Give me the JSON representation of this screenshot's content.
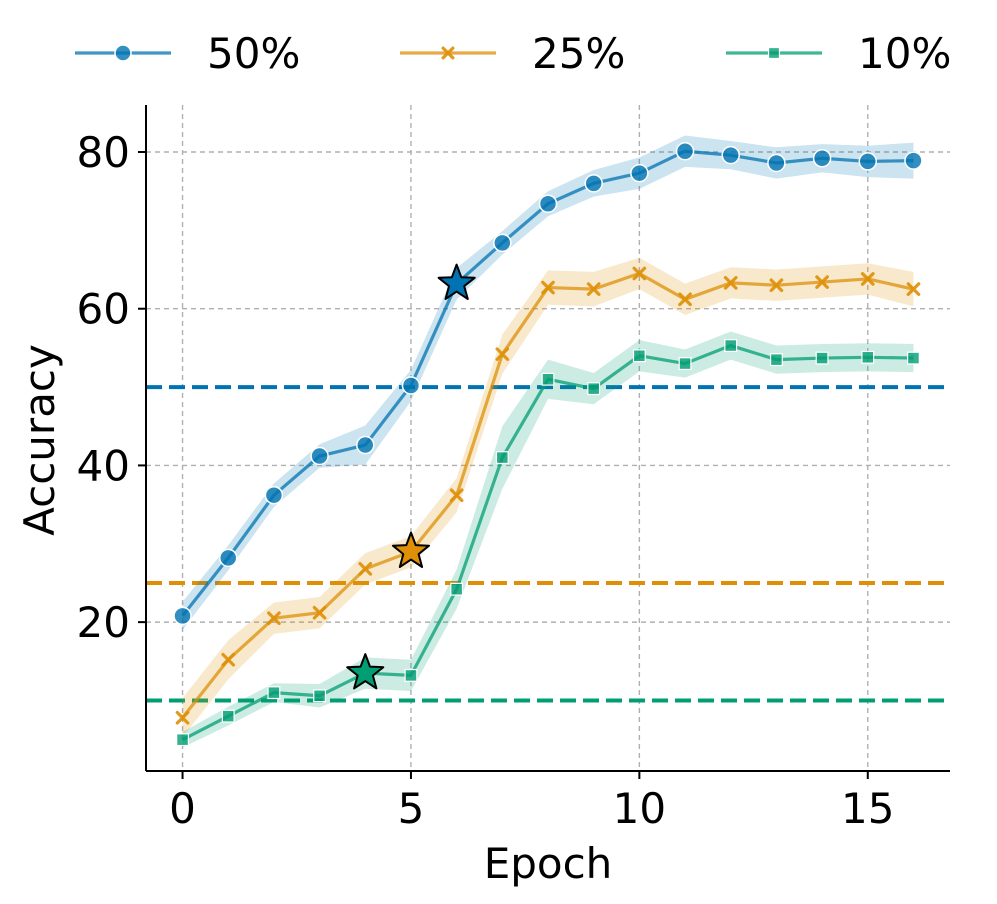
{
  "chart_data": {
    "type": "line",
    "title": "",
    "xlabel": "Epoch",
    "ylabel": "Accuracy",
    "xlim": [
      -0.8,
      16.8
    ],
    "ylim": [
      1,
      86
    ],
    "xticks": [
      0,
      5,
      10,
      15
    ],
    "yticks": [
      20,
      40,
      60,
      80
    ],
    "grid": true,
    "legend_position": "top, outside, horizontal",
    "x": [
      0,
      1,
      2,
      3,
      4,
      5,
      6,
      7,
      8,
      9,
      10,
      11,
      12,
      13,
      14,
      15,
      16
    ],
    "series": [
      {
        "name": "50%",
        "color": "#0173b2",
        "marker": "circle",
        "values": [
          20.8,
          28.2,
          36.2,
          41.2,
          42.6,
          50.2,
          63.2,
          68.4,
          73.4,
          76.0,
          77.3,
          80.1,
          79.6,
          78.6,
          79.2,
          78.8,
          78.9
        ],
        "band_halfwidth": [
          1.8,
          1.6,
          1.5,
          1.5,
          2.5,
          2.0,
          2.0,
          1.5,
          1.6,
          1.7,
          2.0,
          2.0,
          1.8,
          2.0,
          1.8,
          2.0,
          2.3
        ],
        "threshold": 50,
        "star": {
          "x": 6,
          "y": 63.2
        }
      },
      {
        "name": "25%",
        "color": "#de8f05",
        "marker": "x",
        "values": [
          7.8,
          15.2,
          20.5,
          21.2,
          26.8,
          29.0,
          36.2,
          54.2,
          62.7,
          62.5,
          64.5,
          61.2,
          63.3,
          63.0,
          63.4,
          63.8,
          62.5
        ],
        "band_halfwidth": [
          2.5,
          2.5,
          2.0,
          2.0,
          2.0,
          2.0,
          2.2,
          2.5,
          2.2,
          2.2,
          2.0,
          2.0,
          2.0,
          2.0,
          2.0,
          2.0,
          2.2
        ],
        "threshold": 25,
        "star": {
          "x": 5,
          "y": 29.0
        }
      },
      {
        "name": "10%",
        "color": "#029e73",
        "marker": "square",
        "values": [
          5.0,
          8.0,
          11.0,
          10.6,
          13.5,
          13.2,
          24.2,
          41.0,
          51.0,
          49.8,
          54.0,
          53.0,
          55.3,
          53.5,
          53.7,
          53.8,
          53.7
        ],
        "band_halfwidth": [
          1.0,
          1.2,
          1.2,
          1.5,
          2.0,
          2.0,
          2.5,
          4.0,
          2.5,
          2.0,
          2.0,
          1.8,
          1.8,
          1.8,
          1.8,
          1.8,
          1.8
        ],
        "threshold": 10,
        "star": {
          "x": 4,
          "y": 13.5
        }
      }
    ]
  }
}
